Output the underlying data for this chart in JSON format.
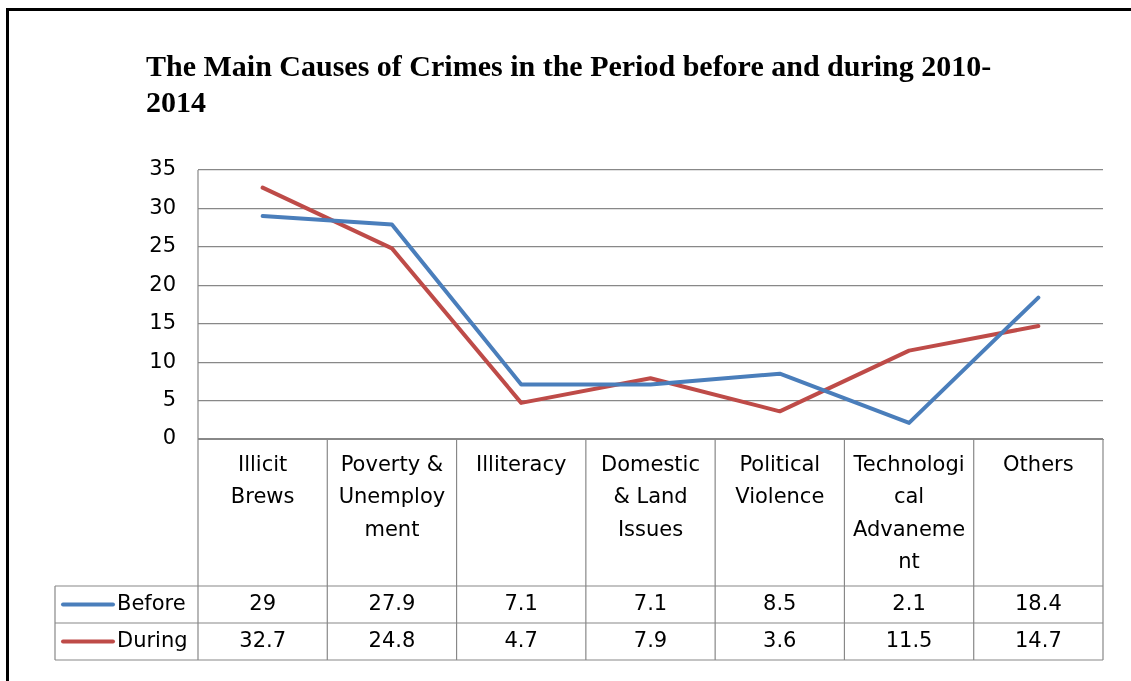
{
  "chart_data": {
    "type": "line",
    "title": "The Main Causes of Crimes in the Period before and during 2010-2014",
    "categories": [
      "Illicit Brews",
      "Poverty & Unemployment",
      "Illiteracy",
      "Domestic & Land Issues",
      "Political Violence",
      "Technological Advanement",
      "Others"
    ],
    "series": [
      {
        "name": "Before",
        "color": "#4a7ebb",
        "values": [
          29,
          27.9,
          7.1,
          7.1,
          8.5,
          2.1,
          18.4
        ]
      },
      {
        "name": "During",
        "color": "#be4b48",
        "values": [
          32.7,
          24.8,
          4.7,
          7.9,
          3.6,
          11.5,
          14.7
        ]
      }
    ],
    "ylim": [
      0,
      35
    ],
    "yticks": [
      0,
      5,
      10,
      15,
      20,
      25,
      30,
      35
    ],
    "grid": "y",
    "legend": "bottom",
    "marker": "none",
    "line_style": "solid",
    "data_labels": true
  }
}
